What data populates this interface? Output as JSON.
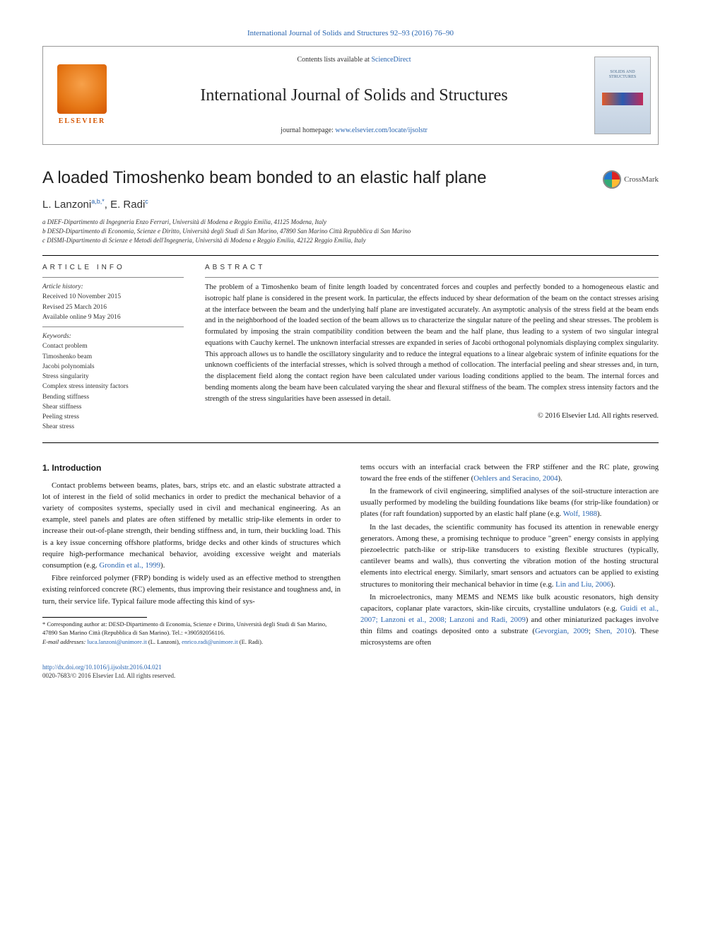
{
  "colors": {
    "link": "#2864b0",
    "text": "#1a1a1a",
    "muted": "#333333",
    "elsevier_orange": "#e67817",
    "background": "#ffffff",
    "rule": "#000000"
  },
  "typography": {
    "body_family": "Georgia, 'Times New Roman', serif",
    "sans_family": "'Helvetica Neue', Arial, sans-serif",
    "title_size_pt": 24,
    "journal_size_pt": 24,
    "authors_size_pt": 15,
    "abstract_size_pt": 10.5,
    "body_size_pt": 10.8,
    "affil_size_pt": 9,
    "footnote_size_pt": 8.5
  },
  "top_citation": "International Journal of Solids and Structures 92–93 (2016) 76–90",
  "header": {
    "contents_prefix": "Contents lists available at ",
    "contents_link": "ScienceDirect",
    "journal": "International Journal of Solids and Structures",
    "homepage_prefix": "journal homepage: ",
    "homepage_link": "www.elsevier.com/locate/ijsolstr",
    "publisher_text": "ELSEVIER",
    "cover_label": "SOLIDS AND STRUCTURES"
  },
  "title": "A loaded Timoshenko beam bonded to an elastic half plane",
  "crossmark_label": "CrossMark",
  "authors_html": "L. Lanzoni",
  "authors_sup1": "a,b,*",
  "authors_sep": ", E. Radi",
  "authors_sup2": "c",
  "affiliations": [
    "a DIEF-Dipartimento di Ingegneria Enzo Ferrari, Università di Modena e Reggio Emilia, 41125 Modena, Italy",
    "b DESD-Dipartimento di Economia, Scienze e Diritto, Università degli Studi di San Marino, 47890 San Marino Città Repubblica di San Marino",
    "c DISMI-Dipartimento di Scienze e Metodi dell'Ingegneria, Università di Modena e Reggio Emilia, 42122 Reggio Emilia, Italy"
  ],
  "article_info": {
    "heading": "ARTICLE INFO",
    "history_label": "Article history:",
    "history": [
      "Received 10 November 2015",
      "Revised 25 March 2016",
      "Available online 9 May 2016"
    ],
    "keywords_label": "Keywords:",
    "keywords": [
      "Contact problem",
      "Timoshenko beam",
      "Jacobi polynomials",
      "Stress singularity",
      "Complex stress intensity factors",
      "Bending stiffness",
      "Shear stiffness",
      "Peeling stress",
      "Shear stress"
    ]
  },
  "abstract": {
    "heading": "ABSTRACT",
    "text": "The problem of a Timoshenko beam of finite length loaded by concentrated forces and couples and perfectly bonded to a homogeneous elastic and isotropic half plane is considered in the present work. In particular, the effects induced by shear deformation of the beam on the contact stresses arising at the interface between the beam and the underlying half plane are investigated accurately. An asymptotic analysis of the stress field at the beam ends and in the neighborhood of the loaded section of the beam allows us to characterize the singular nature of the peeling and shear stresses. The problem is formulated by imposing the strain compatibility condition between the beam and the half plane, thus leading to a system of two singular integral equations with Cauchy kernel. The unknown interfacial stresses are expanded in series of Jacobi orthogonal polynomials displaying complex singularity. This approach allows us to handle the oscillatory singularity and to reduce the integral equations to a linear algebraic system of infinite equations for the unknown coefficients of the interfacial stresses, which is solved through a method of collocation. The interfacial peeling and shear stresses and, in turn, the displacement field along the contact region have been calculated under various loading conditions applied to the beam. The internal forces and bending moments along the beam have been calculated varying the shear and flexural stiffness of the beam. The complex stress intensity factors and the strength of the stress singularities have been assessed in detail.",
    "copyright": "© 2016 Elsevier Ltd. All rights reserved."
  },
  "body": {
    "section_heading": "1. Introduction",
    "p1_pre": "Contact problems between beams, plates, bars, strips etc. and an elastic substrate attracted a lot of interest in the field of solid mechanics in order to predict the mechanical behavior of a variety of composites systems, specially used in civil and mechanical engineering. As an example, steel panels and plates are often stiffened by metallic strip-like elements in order to increase their out-of-plane strength, their bending stiffness and, in turn, their buckling load. This is a key issue concerning offshore platforms, bridge decks and other kinds of structures which require high-performance mechanical behavior, avoiding excessive weight and materials consumption (e.g. ",
    "p1_link": "Grondin et al., 1999",
    "p1_post": ").",
    "p2": "Fibre reinforced polymer (FRP) bonding is widely used as an effective method to strengthen existing reinforced concrete (RC) elements, thus improving their resistance and toughness and, in turn, their service life. Typical failure mode affecting this kind of sys-",
    "p3_pre": "tems occurs with an interfacial crack between the FRP stiffener and the RC plate, growing toward the free ends of the stiffener (",
    "p3_link": "Oehlers and Seracino, 2004",
    "p3_post": ").",
    "p4_pre": "In the framework of civil engineering, simplified analyses of the soil-structure interaction are usually performed by modeling the building foundations like beams (for strip-like foundation) or plates (for raft foundation) supported by an elastic half plane (e.g. ",
    "p4_link": "Wolf, 1988",
    "p4_post": ").",
    "p5_pre": "In the last decades, the scientific community has focused its attention in renewable energy generators. Among these, a promising technique to produce \"green\" energy consists in applying piezoelectric patch-like or strip-like transducers to existing flexible structures (typically, cantilever beams and walls), thus converting the vibration motion of the hosting structural elements into electrical energy. Similarly, smart sensors and actuators can be applied to existing structures to monitoring their mechanical behavior in time (e.g. ",
    "p5_link": "Lin and Liu, 2006",
    "p5_post": ").",
    "p6_pre": "In microelectronics, many MEMS and NEMS like bulk acoustic resonators, high density capacitors, coplanar plate varactors, skin-like circuits, crystalline undulators (e.g. ",
    "p6_link1": "Guidi et al., 2007; Lanzoni et al., 2008; Lanzoni and Radi, 2009",
    "p6_mid": ") and other miniaturized packages involve thin films and coatings deposited onto a substrate (",
    "p6_link2": "Gevorgian, 2009",
    "p6_sep": "; ",
    "p6_link3": "Shen, 2010",
    "p6_post": "). These microsystems are often"
  },
  "footnotes": {
    "corr_label": "* Corresponding author at: DESD-Dipartimento di Economia, Scienze e Diritto, Università degli Studi di San Marino, 47890 San Marino Città (Repubblica di San Marino). Tel.: +390592056116.",
    "email_label": "E-mail addresses: ",
    "email1": "luca.lanzoni@unimore.it",
    "email1_who": " (L. Lanzoni), ",
    "email2": "enrico.radi@unimore.it",
    "email2_who": " (E. Radi)."
  },
  "footer": {
    "doi": "http://dx.doi.org/10.1016/j.ijsolstr.2016.04.021",
    "issn_line": "0020-7683/© 2016 Elsevier Ltd. All rights reserved."
  }
}
